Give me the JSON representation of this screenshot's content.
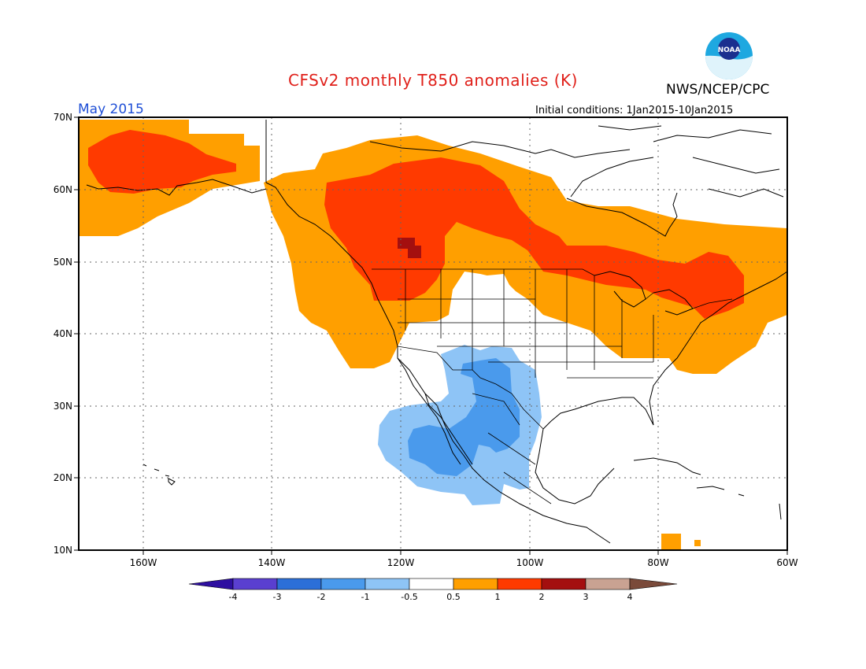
{
  "header": {
    "title": "CFSv2 monthly T850 anomalies (K)",
    "agency": "NWS/NCEP/CPC",
    "logo_text": "NOAA",
    "period": "May 2015",
    "initial_conditions": "Initial conditions: 1Jan2015-10Jan2015"
  },
  "map": {
    "region": "North America",
    "lon_range": [
      -170,
      -60
    ],
    "lat_range": [
      10,
      70
    ],
    "lat_labels": [
      "70N",
      "60N",
      "50N",
      "40N",
      "30N",
      "20N",
      "10N"
    ],
    "lon_labels": [
      "160W",
      "140W",
      "120W",
      "100W",
      "80W",
      "60W"
    ],
    "gridlines": "dotted"
  },
  "colorbar": {
    "labels": [
      "-4",
      "-3",
      "-2",
      "-1",
      "-0.5",
      "0.5",
      "1",
      "2",
      "3",
      "4"
    ],
    "colors": [
      "#2e0fa0",
      "#5a3fd0",
      "#2c6fd8",
      "#4a9aec",
      "#8ec4f6",
      "#ffffff",
      "#ff9f00",
      "#ff3a00",
      "#a40f0f",
      "#c9a292",
      "#7a4a3a"
    ]
  },
  "anomaly_colors": {
    "warm_weak": "#ff9f00",
    "warm_moderate": "#ff3a00",
    "warm_strong": "#a40f0f",
    "cold_weak": "#8ec4f6",
    "cold_moderate": "#4a9aec"
  }
}
